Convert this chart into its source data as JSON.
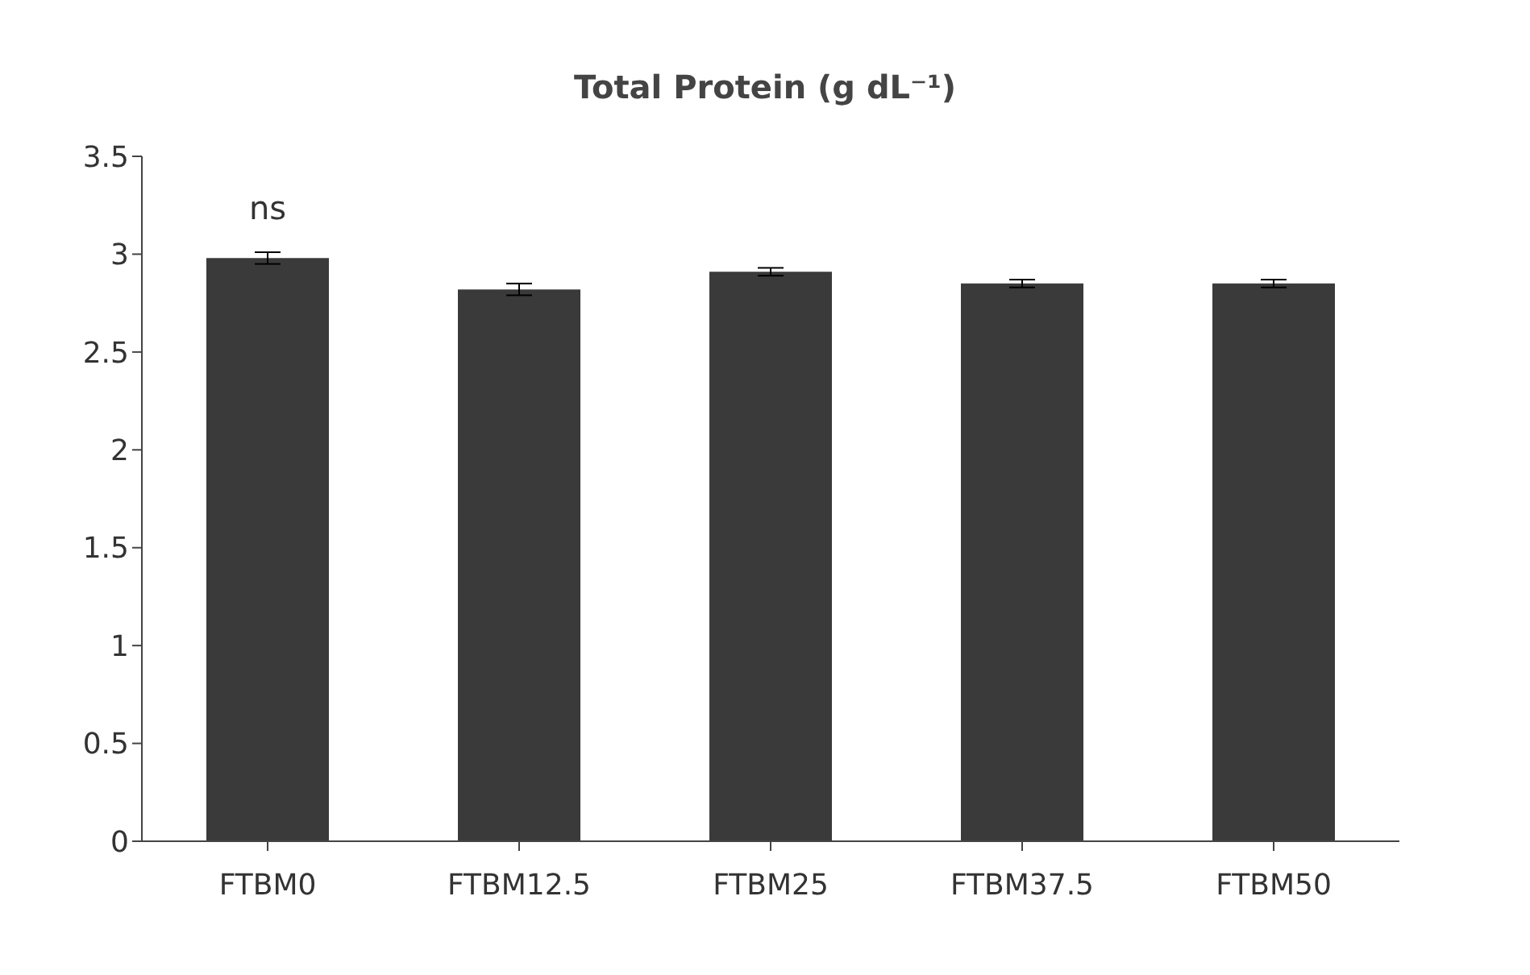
{
  "chart_data": {
    "type": "bar",
    "title": "Total Protein (g dL⁻¹)",
    "categories": [
      "FTBM0",
      "FTBM12.5",
      "FTBM25",
      "FTBM37.5",
      "FTBM50"
    ],
    "values": [
      2.98,
      2.82,
      2.91,
      2.85,
      2.85
    ],
    "errors": [
      0.03,
      0.03,
      0.02,
      0.02,
      0.02
    ],
    "color": "#3a3a3a",
    "ylim": [
      0,
      3.5
    ],
    "yticks": [
      0,
      0.5,
      1,
      1.5,
      2,
      2.5,
      3,
      3.5
    ],
    "grid": false,
    "annotations": [
      {
        "text": "ns",
        "x": "FTBM0",
        "y": 2.98
      }
    ]
  }
}
